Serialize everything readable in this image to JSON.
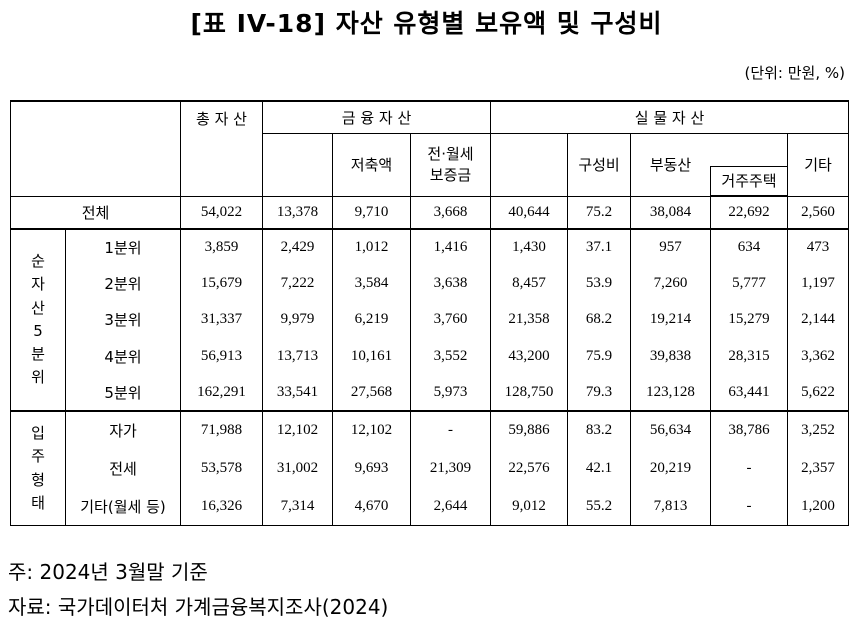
{
  "title": "[표 IV-18] 자산 유형별 보유액 및 구성비",
  "unit": "(단위: 만원, %)",
  "table": {
    "headers": {
      "total": "총 자 산",
      "financial": "금 융 자 산",
      "savings": "저축액",
      "deposit": [
        "전·월세",
        "보증금"
      ],
      "real": "실 물 자 산",
      "ratio": "구성비",
      "real_estate": "부동산",
      "residence": "거주주택",
      "other": "기타"
    },
    "total_row": {
      "label": "전체",
      "values": [
        "54,022",
        "13,378",
        "9,710",
        "3,668",
        "40,644",
        "75.2",
        "38,084",
        "22,692",
        "2,560"
      ]
    },
    "groups": [
      {
        "label": "순자산5분위",
        "rows": [
          {
            "label": "1분위",
            "values": [
              "3,859",
              "2,429",
              "1,012",
              "1,416",
              "1,430",
              "37.1",
              "957",
              "634",
              "473"
            ]
          },
          {
            "label": "2분위",
            "values": [
              "15,679",
              "7,222",
              "3,584",
              "3,638",
              "8,457",
              "53.9",
              "7,260",
              "5,777",
              "1,197"
            ]
          },
          {
            "label": "3분위",
            "values": [
              "31,337",
              "9,979",
              "6,219",
              "3,760",
              "21,358",
              "68.2",
              "19,214",
              "15,279",
              "2,144"
            ]
          },
          {
            "label": "4분위",
            "values": [
              "56,913",
              "13,713",
              "10,161",
              "3,552",
              "43,200",
              "75.9",
              "39,838",
              "28,315",
              "3,362"
            ]
          },
          {
            "label": "5분위",
            "values": [
              "162,291",
              "33,541",
              "27,568",
              "5,973",
              "128,750",
              "79.3",
              "123,128",
              "63,441",
              "5,622"
            ]
          }
        ]
      },
      {
        "label": "입주형태",
        "rows": [
          {
            "label": "자가",
            "values": [
              "71,988",
              "12,102",
              "12,102",
              "-",
              "59,886",
              "83.2",
              "56,634",
              "38,786",
              "3,252"
            ]
          },
          {
            "label": "전세",
            "values": [
              "53,578",
              "31,002",
              "9,693",
              "21,309",
              "22,576",
              "42.1",
              "20,219",
              "-",
              "2,357"
            ]
          },
          {
            "label": "기타(월세 등)",
            "values": [
              "16,326",
              "7,314",
              "4,670",
              "2,644",
              "9,012",
              "55.2",
              "7,813",
              "-",
              "1,200"
            ]
          }
        ]
      }
    ]
  },
  "notes": [
    "주: 2024년 3월말 기준",
    "자료: 국가데이터처 가계금융복지조사(2024)"
  ]
}
